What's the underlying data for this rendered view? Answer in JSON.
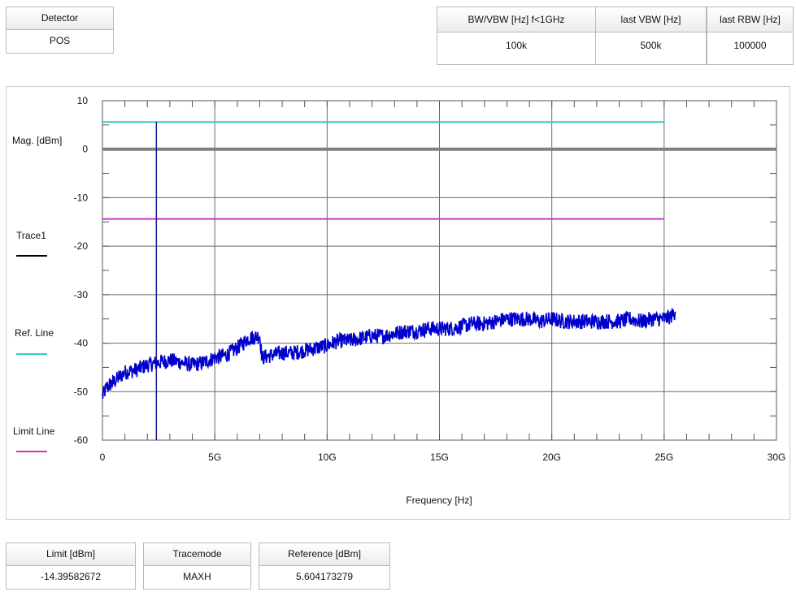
{
  "top_panels": {
    "detector": {
      "label": "Detector",
      "value": "POS"
    },
    "bw_vbw": {
      "label": "BW/VBW [Hz] f<1GHz",
      "value": "100k"
    },
    "last_vbw": {
      "label": "last VBW [Hz]",
      "value": "500k"
    },
    "last_rbw": {
      "label": "last RBW [Hz]",
      "value": "100000"
    }
  },
  "bottom_panels": {
    "limit": {
      "label": "Limit [dBm]",
      "value": "-14.39582672"
    },
    "tracemode": {
      "label": "Tracemode",
      "value": "MAXH"
    },
    "reference": {
      "label": "Reference [dBm]",
      "value": "5.604173279"
    }
  },
  "legend": {
    "trace1": {
      "label": "Trace1",
      "color": "#000000"
    },
    "ref_line": {
      "label": "Ref. Line",
      "color": "#33cccc"
    },
    "limit_line": {
      "label": "Limit Line",
      "color": "#cc33cc"
    }
  },
  "chart_data": {
    "type": "line",
    "xlabel": "Frequency [Hz]",
    "ylabel": "Mag. [dBm]",
    "xlim": [
      0,
      30000000000
    ],
    "ylim": [
      -60,
      10
    ],
    "x_ticks": [
      {
        "value": 0,
        "label": "0"
      },
      {
        "value": 5000000000,
        "label": "5G"
      },
      {
        "value": 10000000000,
        "label": "10G"
      },
      {
        "value": 15000000000,
        "label": "15G"
      },
      {
        "value": 20000000000,
        "label": "20G"
      },
      {
        "value": 25000000000,
        "label": "25G"
      },
      {
        "value": 30000000000,
        "label": "30G"
      }
    ],
    "y_ticks": [
      {
        "value": 10,
        "label": "10"
      },
      {
        "value": 0,
        "label": "0"
      },
      {
        "value": -10,
        "label": "-10"
      },
      {
        "value": -20,
        "label": "-20"
      },
      {
        "value": -30,
        "label": "-30"
      },
      {
        "value": -40,
        "label": "-40"
      },
      {
        "value": -50,
        "label": "-50"
      },
      {
        "value": -60,
        "label": "-60"
      }
    ],
    "grid": true,
    "zero_line": {
      "value": 0,
      "color": "#808080"
    },
    "ref_line": {
      "value": 5.604173279,
      "x_end": 25000000000,
      "color": "#33cccc"
    },
    "limit_line": {
      "value": -14.39582672,
      "x_end": 25000000000,
      "color": "#cc33cc"
    },
    "marker": {
      "x": 2400000000,
      "y_top": 5.604173279,
      "color": "#1a1a99"
    },
    "series": [
      {
        "color": "#0000cc",
        "x": [
          0,
          200000000,
          500000000,
          1000000000,
          1500000000,
          2000000000,
          2500000000,
          3000000000,
          3500000000,
          4000000000,
          4500000000,
          5000000000,
          5500000000,
          6000000000,
          6500000000,
          7000000000,
          7100000000,
          7500000000,
          8000000000,
          8500000000,
          9000000000,
          9500000000,
          10000000000,
          10500000000,
          11000000000,
          11500000000,
          12000000000,
          12500000000,
          13000000000,
          13500000000,
          14000000000,
          14500000000,
          15000000000,
          15500000000,
          16000000000,
          16500000000,
          17000000000,
          17500000000,
          18000000000,
          18500000000,
          19000000000,
          19500000000,
          20000000000,
          20500000000,
          21000000000,
          21500000000,
          22000000000,
          22500000000,
          23000000000,
          23500000000,
          24000000000,
          24500000000,
          25000000000,
          25300000000,
          25500000000
        ],
        "values": [
          -51,
          -49,
          -48,
          -46,
          -45.5,
          -44.5,
          -44,
          -43.5,
          -44,
          -44.5,
          -44,
          -43,
          -42.5,
          -41,
          -39,
          -38.5,
          -43,
          -42.5,
          -42,
          -42,
          -41.5,
          -41,
          -40.5,
          -39.5,
          -39.5,
          -39,
          -38.5,
          -38.5,
          -38,
          -37.5,
          -37.5,
          -37,
          -37,
          -37,
          -36.5,
          -36,
          -36,
          -35.5,
          -35,
          -35,
          -35,
          -35.5,
          -35,
          -35.5,
          -35.5,
          -35.5,
          -35.5,
          -35.5,
          -35.5,
          -35,
          -35.5,
          -35,
          -35,
          -34.5,
          -33.5
        ]
      }
    ]
  }
}
